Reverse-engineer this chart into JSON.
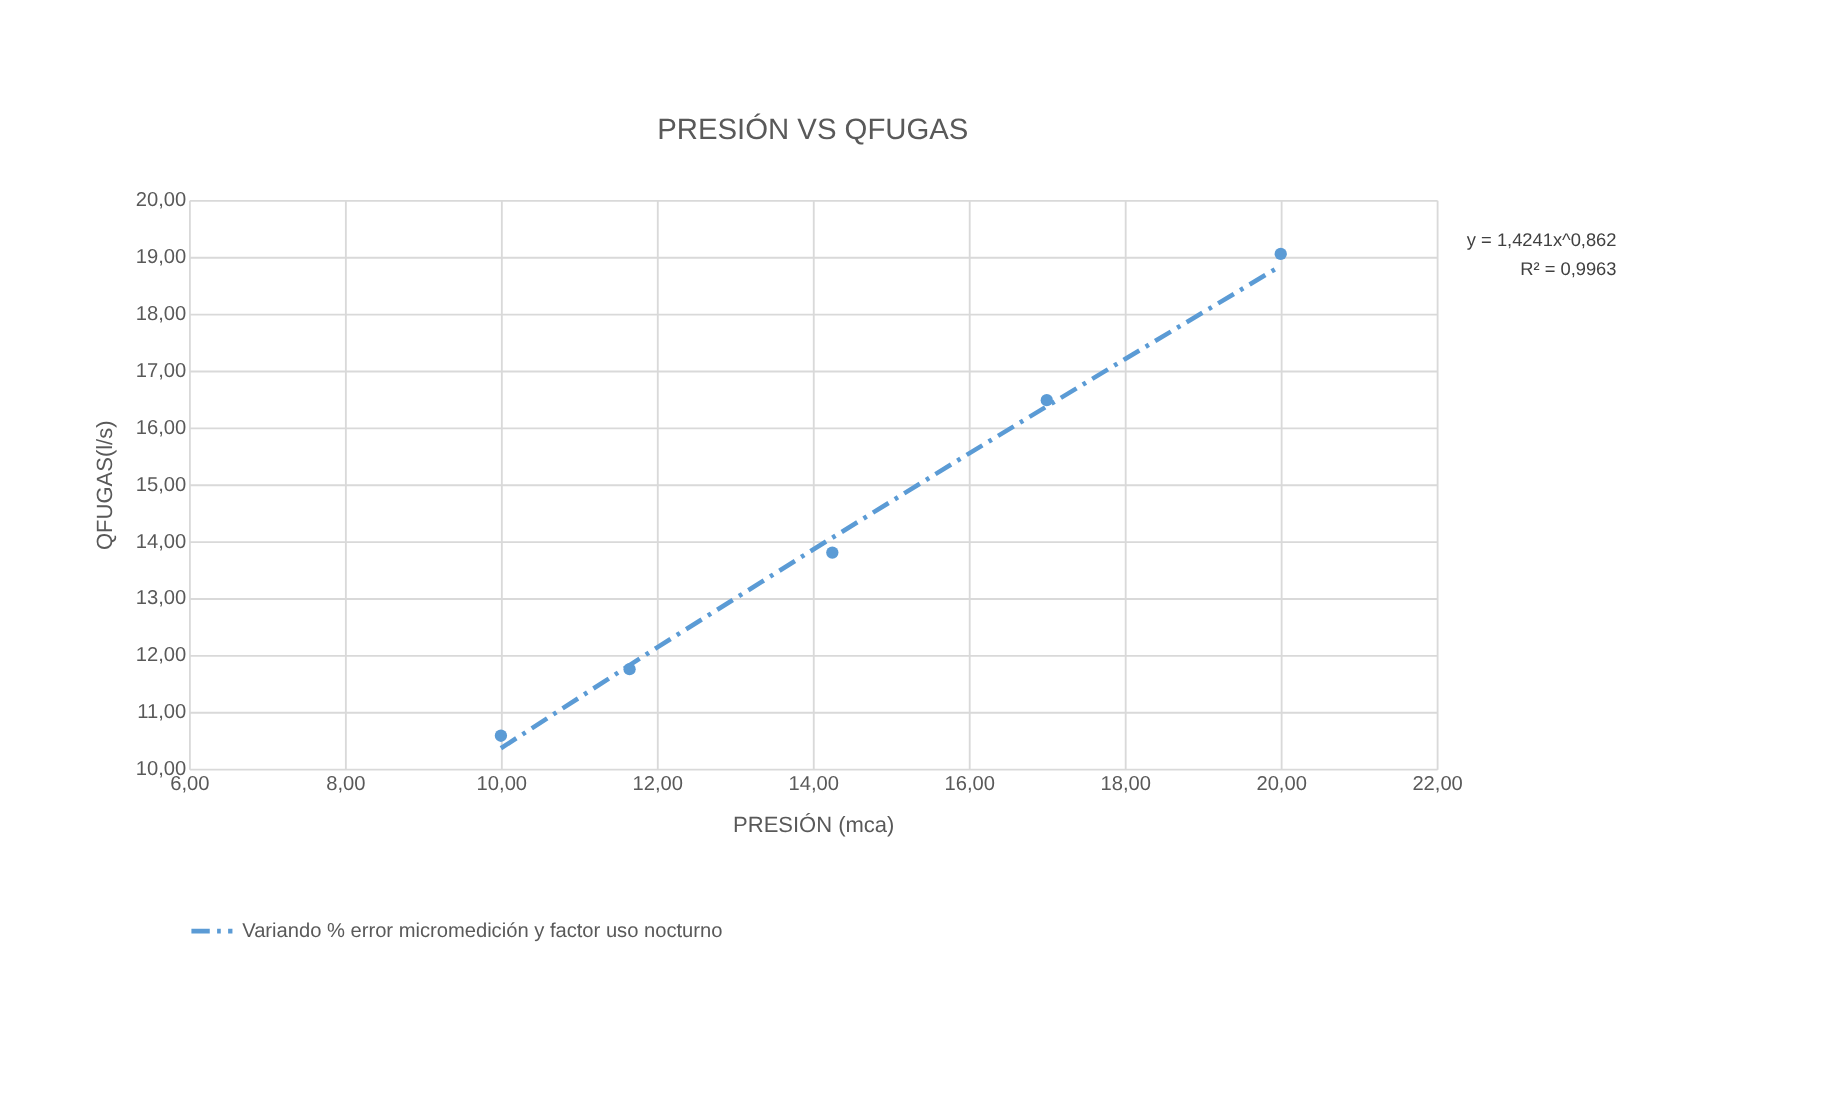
{
  "chart_data": {
    "type": "scatter",
    "title": "PRESIÓN VS QFUGAS",
    "xlabel": "PRESIÓN (mca)",
    "ylabel": "QFUGAS(l/s)",
    "x": [
      10.0,
      11.65,
      14.25,
      17.0,
      20.0
    ],
    "series": [
      {
        "color": "#5b9bd5",
        "marker": "circle",
        "values": [
          10.58,
          11.75,
          13.8,
          16.48,
          19.05
        ]
      },
      {
        "type": "line",
        "name": "Variando % error micromedición y factor uso nocturno",
        "color": "#5b9bd5",
        "line_style": "dashed",
        "marker": "none",
        "x": [
          10,
          12,
          14,
          16,
          18,
          20
        ],
        "values": [
          10.36,
          12.13,
          13.85,
          15.54,
          17.2,
          18.84
        ]
      }
    ],
    "xlim": [
      6,
      22
    ],
    "xticks": [
      {
        "value": 6,
        "label": "6,00"
      },
      {
        "value": 8,
        "label": "8,00"
      },
      {
        "value": 10,
        "label": "10,00"
      },
      {
        "value": 12,
        "label": "12,00"
      },
      {
        "value": 14,
        "label": "14,00"
      },
      {
        "value": 16,
        "label": "16,00"
      },
      {
        "value": 18,
        "label": "18,00"
      },
      {
        "value": 20,
        "label": "20,00"
      },
      {
        "value": 22,
        "label": "22,00"
      }
    ],
    "ylim": [
      10,
      20
    ],
    "yticks": [
      {
        "value": 10,
        "label": "10,00"
      },
      {
        "value": 11,
        "label": "11,00"
      },
      {
        "value": 12,
        "label": "12,00"
      },
      {
        "value": 13,
        "label": "13,00"
      },
      {
        "value": 14,
        "label": "14,00"
      },
      {
        "value": 15,
        "label": "15,00"
      },
      {
        "value": 16,
        "label": "16,00"
      },
      {
        "value": 17,
        "label": "17,00"
      },
      {
        "value": 18,
        "label": "18,00"
      },
      {
        "value": 19,
        "label": "19,00"
      },
      {
        "value": 20,
        "label": "20,00"
      }
    ],
    "annotations": [
      "y = 1,4241x^0,862",
      "R² = 0,9963"
    ],
    "grid": true,
    "legend": "bottom"
  }
}
